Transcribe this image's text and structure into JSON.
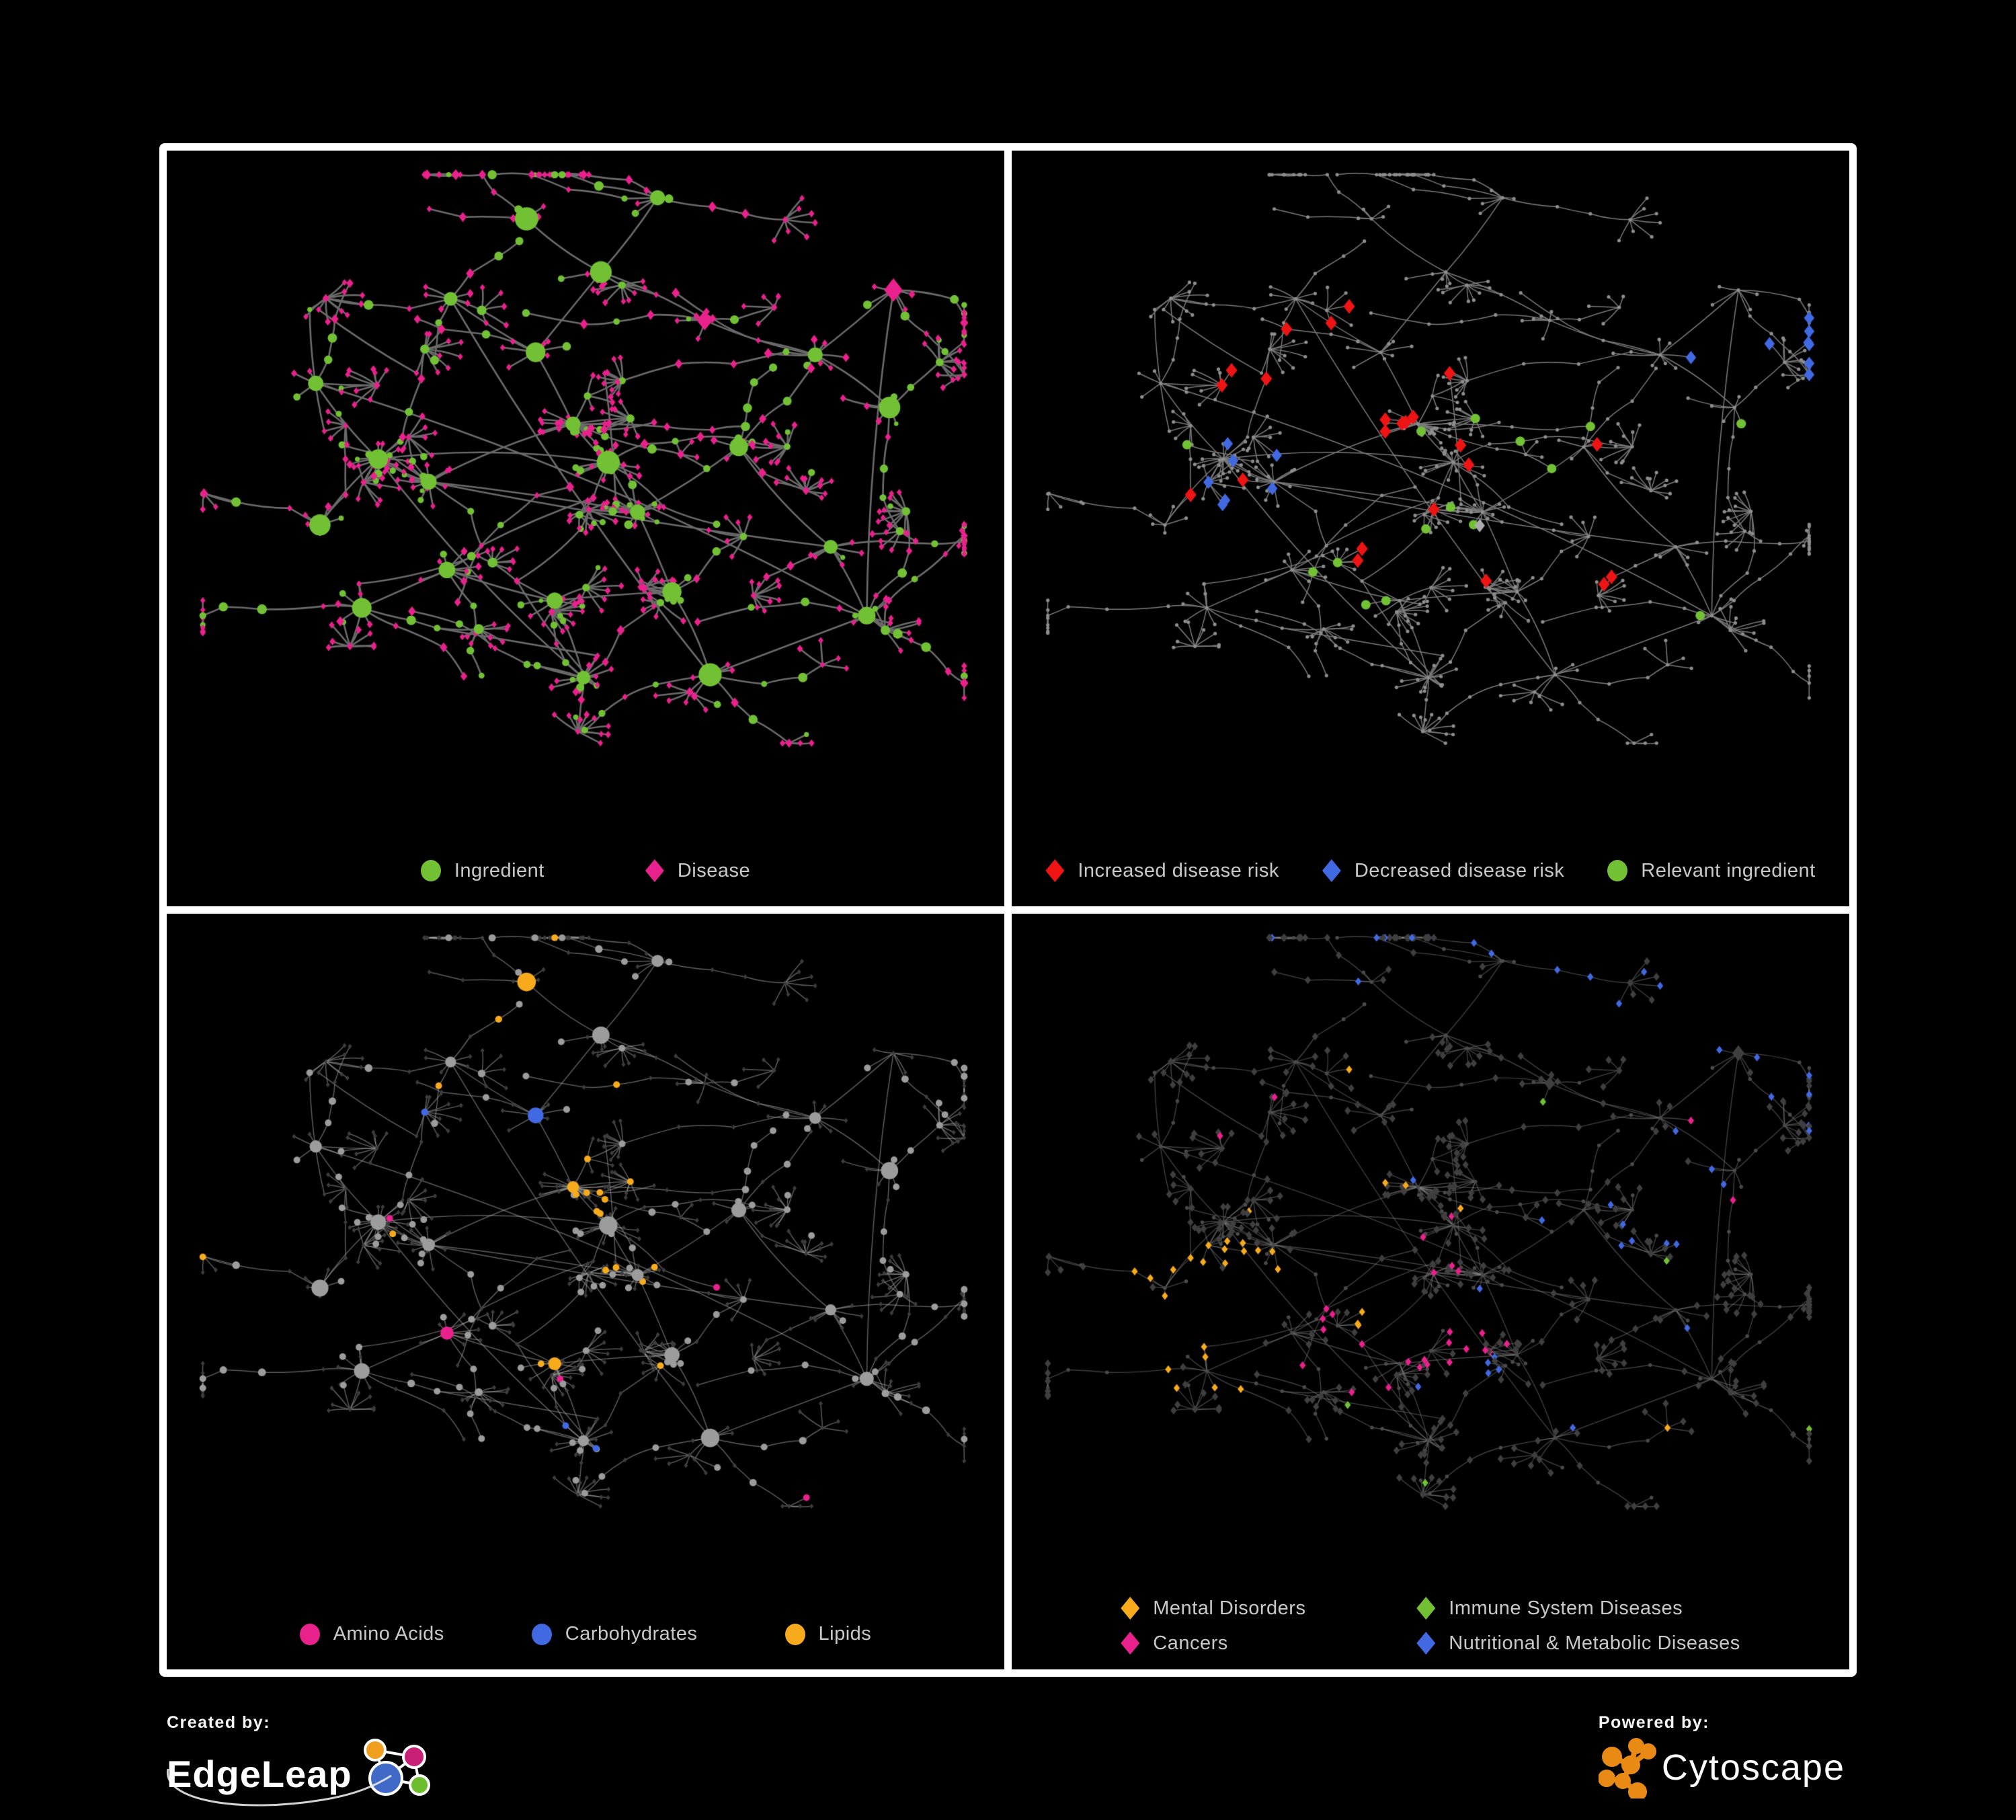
{
  "page": {
    "background": "#000000",
    "frame_color": "#FFFFFF"
  },
  "footer": {
    "created_by": "Created by:",
    "created_brand": "EdgeLeap",
    "powered_by": "Powered by:",
    "powered_brand": "Cytoscape",
    "cytoscape_orange": "#E98A15",
    "edgeleap_logo_colors": {
      "hub": "#4169C8",
      "top_left": "#F0A01E",
      "top_right": "#C81F77",
      "bottom_right": "#6CBE2C"
    }
  },
  "colors": {
    "green": "#72C134",
    "magenta": "#E9218C",
    "red": "#EE1414",
    "blue": "#4169E1",
    "amber": "#F7AB1C",
    "silver": "#ABABAB",
    "gray_dot": "#8E8E8E",
    "gray_circle": "#9C9C9C",
    "dark_diamond": "#3D3D3D",
    "dark_diamond2": "#3F3F3F",
    "dark_dot": "#4A4A4A",
    "edge1": "#6B6B6B",
    "edge2": "#7B7B7B",
    "edge3": "#A8A8A8",
    "edge4": "#8F8F8F",
    "legend_text": "#C9C9C9"
  },
  "panels": [
    {
      "id": "ingredient-disease",
      "legend_layout": "row",
      "legend_class": "",
      "legend": [
        {
          "label": "Ingredient",
          "marker": "circle",
          "color": "#72C134"
        },
        {
          "label": "Disease",
          "marker": "diamond",
          "color": "#E9218C"
        }
      ]
    },
    {
      "id": "disease-risk",
      "legend_layout": "row",
      "legend_class": "tight",
      "legend": [
        {
          "label": "Increased disease risk",
          "marker": "diamond",
          "color": "#EE1414"
        },
        {
          "label": "Decreased disease risk",
          "marker": "diamond",
          "color": "#4169E1"
        },
        {
          "label": "Relevant ingredient",
          "marker": "circle",
          "color": "#72C134"
        }
      ]
    },
    {
      "id": "ingredient-classes",
      "legend_layout": "row",
      "legend_class": "mid",
      "legend": [
        {
          "label": "Amino Acids",
          "marker": "circle",
          "color": "#E9218C"
        },
        {
          "label": "Carbohydrates",
          "marker": "circle",
          "color": "#4169E1"
        },
        {
          "label": "Lipids",
          "marker": "circle",
          "color": "#F7AB1C"
        }
      ]
    },
    {
      "id": "disease-classes",
      "legend_layout": "grid",
      "legend": [
        {
          "label": "Mental Disorders",
          "marker": "diamond",
          "color": "#F7AB1C"
        },
        {
          "label": "Immune System Diseases",
          "marker": "diamond",
          "color": "#72C134"
        },
        {
          "label": "Cancers",
          "marker": "diamond",
          "color": "#E9218C"
        },
        {
          "label": "Nutritional & Metabolic Diseases",
          "marker": "diamond",
          "color": "#4169E1"
        }
      ]
    }
  ],
  "network": {
    "seed": 20,
    "shared_layout": true,
    "hubs": [
      [
        0.235,
        0.475,
        18
      ],
      [
        0.305,
        0.5,
        14
      ],
      [
        0.475,
        0.42,
        20
      ],
      [
        0.52,
        0.47,
        15
      ],
      [
        0.565,
        0.565,
        16
      ],
      [
        0.43,
        0.3,
        6
      ],
      [
        0.33,
        0.22,
        5
      ],
      [
        0.52,
        0.17,
        4
      ],
      [
        0.645,
        0.245,
        5
      ],
      [
        0.78,
        0.3,
        6
      ],
      [
        0.875,
        0.38,
        4
      ],
      [
        0.7,
        0.46,
        5
      ],
      [
        0.615,
        0.68,
        10
      ],
      [
        0.47,
        0.7,
        6
      ],
      [
        0.33,
        0.66,
        8
      ],
      [
        0.22,
        0.72,
        6
      ],
      [
        0.5,
        0.825,
        14
      ],
      [
        0.655,
        0.82,
        5
      ],
      [
        0.8,
        0.62,
        6
      ],
      [
        0.86,
        0.72,
        5
      ],
      [
        0.155,
        0.35,
        4
      ],
      [
        0.42,
        0.08,
        4
      ],
      [
        0.6,
        0.05,
        3
      ],
      [
        0.16,
        0.58,
        5
      ],
      [
        0.88,
        0.2,
        4
      ]
    ],
    "node_types": {
      "circle": "ingredient",
      "diamond": "disease"
    },
    "approx_node_count": 700
  }
}
